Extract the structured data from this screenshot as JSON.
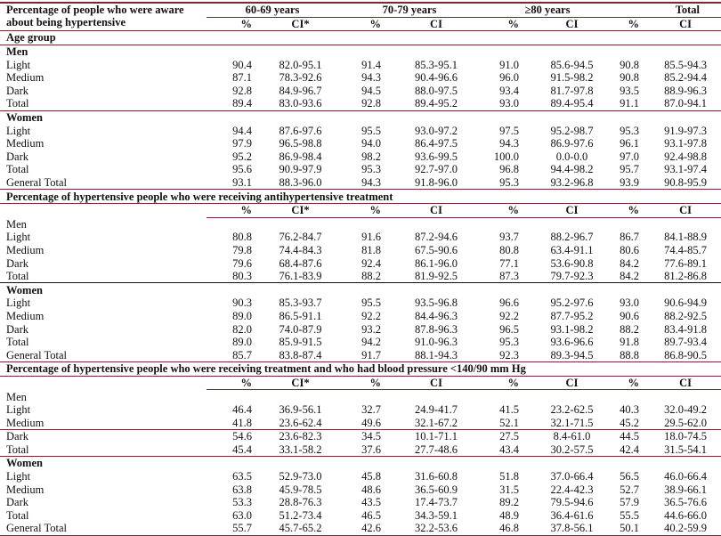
{
  "header": {
    "title_line1": "Percentage of people who were aware",
    "title_line2": "about being hypertensive",
    "groups": [
      "60-69 years",
      "70-79 years",
      "≥80 years",
      "Total"
    ],
    "subcols": [
      "%",
      "CI*",
      "%",
      "CI",
      "%",
      "CI",
      "%",
      "CI"
    ]
  },
  "age_group_label": "Age group",
  "sections": [
    {
      "title": null,
      "blocks": [
        {
          "label": "Men",
          "rows": [
            [
              "Light",
              "90.4",
              "82.0-95.1",
              "91.4",
              "85.3-95.1",
              "91.0",
              "85.6-94.5",
              "90.8",
              "85.5-94.3"
            ],
            [
              "Medium",
              "87.1",
              "78.3-92.6",
              "94.3",
              "90.4-96.6",
              "96.0",
              "91.5-98.2",
              "90.8",
              "85.2-94.4"
            ],
            [
              "Dark",
              "92.8",
              "84.9-96.7",
              "94.5",
              "88.0-97.5",
              "93.4",
              "81.7-97.8",
              "93.5",
              "88.9-96.3"
            ],
            [
              "Total",
              "89.4",
              "83.0-93.6",
              "92.8",
              "89.4-95.2",
              "93.0",
              "89.4-95.4",
              "91.1",
              "87.0-94.1"
            ]
          ]
        },
        {
          "label": "Women",
          "rows": [
            [
              "Light",
              "94.4",
              "87.6-97.6",
              "95.5",
              "93.0-97.2",
              "97.5",
              "95.2-98.7",
              "95.3",
              "91.9-97.3"
            ],
            [
              "Medium",
              "97.9",
              "96.5-98.8",
              "94.0",
              "86.4-97.5",
              "94.3",
              "86.9-97.6",
              "96.1",
              "93.1-97.8"
            ],
            [
              "Dark",
              "95.2",
              "86.9-98.4",
              "98.2",
              "93.6-99.5",
              "100.0",
              "0.0-0.0",
              "97.0",
              "92.4-98.8"
            ],
            [
              "Total",
              "95.6",
              "90.9-97.9",
              "95.3",
              "92.7-97.0",
              "96.8",
              "94.4-98.2",
              "95.7",
              "93.1-97.4"
            ],
            [
              "General Total",
              "93.1",
              "88.3-96.0",
              "94.3",
              "91.8-96.0",
              "95.3",
              "93.2-96.8",
              "93.9",
              "90.8-95.9"
            ]
          ]
        }
      ]
    },
    {
      "title": "Percentage of hypertensive people who were receiving antihypertensive treatment",
      "blocks": [
        {
          "label": "Men",
          "rows": [
            [
              "Light",
              "80.8",
              "76.2-84.7",
              "91.6",
              "87.2-94.6",
              "93.7",
              "88.2-96.7",
              "86.7",
              "84.1-88.9"
            ],
            [
              "Medium",
              "79.8",
              "74.4-84.3",
              "81.8",
              "67.5-90.6",
              "80.8",
              "63.4-91.1",
              "80.6",
              "74.4-85.7"
            ],
            [
              "Dark",
              "79.6",
              "68.4-87.6",
              "92.4",
              "86.1-96.0",
              "77.1",
              "53.6-90.8",
              "84.2",
              "77.6-89.1"
            ],
            [
              "Total",
              "80.3",
              "76.1-83.9",
              "88.2",
              "81.9-92.5",
              "87.3",
              "79.7-92.3",
              "84.2",
              "81.2-86.8"
            ]
          ]
        },
        {
          "label": "Women",
          "rows": [
            [
              "Light",
              "90.3",
              "85.3-93.7",
              "95.5",
              "93.5-96.8",
              "96.6",
              "95.2-97.6",
              "93.0",
              "90.6-94.9"
            ],
            [
              "Medium",
              "89.0",
              "86.5-91.1",
              "92.2",
              "84.4-96.3",
              "92.2",
              "87.7-95.2",
              "90.6",
              "88.2-92.5"
            ],
            [
              "Dark",
              "82.0",
              "74.0-87.9",
              "93.2",
              "87.8-96.3",
              "96.5",
              "93.1-98.2",
              "88.2",
              "83.4-91.8"
            ],
            [
              "Total",
              "89.0",
              "85.9-91.5",
              "94.2",
              "91.0-96.3",
              "95.3",
              "93.6-96.6",
              "91.8",
              "89.7-93.4"
            ],
            [
              "General Total",
              "85.7",
              "83.8-87.4",
              "91.7",
              "88.1-94.3",
              "92.3",
              "89.3-94.5",
              "88.8",
              "86.8-90.5"
            ]
          ]
        }
      ]
    },
    {
      "title": "Percentage of hypertensive people who were receiving treatment and who had blood pressure <140/90 mm Hg",
      "blocks": [
        {
          "label": "Men",
          "rows": [
            [
              "Light",
              "46.4",
              "36.9-56.1",
              "32.7",
              "24.9-41.7",
              "41.5",
              "23.2-62.5",
              "40.3",
              "32.0-49.2"
            ],
            [
              "Medium",
              "41.8",
              "23.6-62.4",
              "49.6",
              "32.1-67.2",
              "52.1",
              "32.1-71.5",
              "45.2",
              "29.5-62.0"
            ],
            [
              "Dark",
              "54.6",
              "23.6-82.3",
              "34.5",
              "10.1-71.1",
              "27.5",
              "8.4-61.0",
              "44.5",
              "18.0-74.5"
            ],
            [
              "Total",
              "45.4",
              "33.1-58.2",
              "37.6",
              "27.7-48.6",
              "43.4",
              "30.2-57.5",
              "42.4",
              "31.5-54.1"
            ]
          ]
        },
        {
          "label": "Women",
          "rows": [
            [
              "Light",
              "63.5",
              "52.9-73.0",
              "45.8",
              "31.6-60.8",
              "51.8",
              "37.0-66.4",
              "56.5",
              "46.0-66.4"
            ],
            [
              "Medium",
              "63.8",
              "45.9-78.5",
              "48.6",
              "36.5-60.9",
              "31.5",
              "22.4-42.3",
              "52.7",
              "38.9-66.1"
            ],
            [
              "Dark",
              "53.3",
              "28.8-76.3",
              "43.5",
              "17.4-73.7",
              "89.2",
              "79.5-94.6",
              "57.9",
              "36.5-76.6"
            ],
            [
              "Total",
              "63.0",
              "51.2-73.4",
              "46.5",
              "34.3-59.1",
              "48.9",
              "36.4-61.6",
              "55.5",
              "44.6-66.0"
            ],
            [
              "General Total",
              "55.7",
              "45.7-65.2",
              "42.6",
              "32.2-53.6",
              "46.8",
              "37.8-56.1",
              "50.1",
              "40.2-59.9"
            ]
          ]
        }
      ]
    }
  ],
  "colors": {
    "rule": "#7a2a2a",
    "text": "#111111"
  }
}
